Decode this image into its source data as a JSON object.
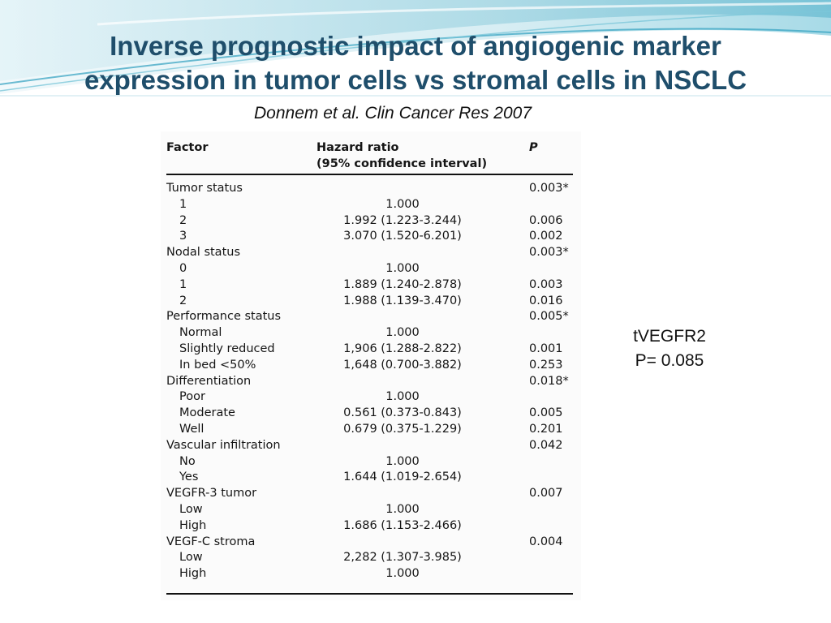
{
  "slide": {
    "title_line1": "Inverse prognostic impact of angiogenic marker",
    "title_line2": "expression in tumor cells vs stromal cells in NSCLC",
    "citation": "Donnem et al. Clin Cancer Res 2007",
    "accent_color": "#1f4e6b"
  },
  "table": {
    "headers": {
      "factor": "Factor",
      "hr_line1": "Hazard ratio",
      "hr_line2": "(95% confidence interval)",
      "p": "P"
    },
    "rows": [
      {
        "factor": "Tumor status",
        "hr": "",
        "p": "0.003*",
        "indent": false
      },
      {
        "factor": "1",
        "hr": "1.000",
        "p": "",
        "indent": true
      },
      {
        "factor": "2",
        "hr": "1.992 (1.223-3.244)",
        "p": "0.006",
        "indent": true
      },
      {
        "factor": "3",
        "hr": "3.070 (1.520-6.201)",
        "p": "0.002",
        "indent": true
      },
      {
        "factor": "Nodal status",
        "hr": "",
        "p": "0.003*",
        "indent": false
      },
      {
        "factor": "0",
        "hr": "1.000",
        "p": "",
        "indent": true
      },
      {
        "factor": "1",
        "hr": "1.889 (1.240-2.878)",
        "p": "0.003",
        "indent": true
      },
      {
        "factor": "2",
        "hr": "1.988 (1.139-3.470)",
        "p": "0.016",
        "indent": true
      },
      {
        "factor": "Performance status",
        "hr": "",
        "p": "0.005*",
        "indent": false
      },
      {
        "factor": "Normal",
        "hr": "1.000",
        "p": "",
        "indent": true
      },
      {
        "factor": "Slightly reduced",
        "hr": "1,906 (1.288-2.822)",
        "p": "0.001",
        "indent": true
      },
      {
        "factor": "In bed <50%",
        "hr": "1,648 (0.700-3.882)",
        "p": "0.253",
        "indent": true
      },
      {
        "factor": "Differentiation",
        "hr": "",
        "p": "0.018*",
        "indent": false
      },
      {
        "factor": "Poor",
        "hr": "1.000",
        "p": "",
        "indent": true
      },
      {
        "factor": "Moderate",
        "hr": "0.561 (0.373-0.843)",
        "p": "0.005",
        "indent": true
      },
      {
        "factor": "Well",
        "hr": "0.679 (0.375-1.229)",
        "p": "0.201",
        "indent": true
      },
      {
        "factor": "Vascular infiltration",
        "hr": "",
        "p": "0.042",
        "indent": false
      },
      {
        "factor": "No",
        "hr": "1.000",
        "p": "",
        "indent": true
      },
      {
        "factor": "Yes",
        "hr": "1.644 (1.019-2.654)",
        "p": "",
        "indent": true
      },
      {
        "factor": "VEGFR-3 tumor",
        "hr": "",
        "p": "0.007",
        "indent": false
      },
      {
        "factor": "Low",
        "hr": "1.000",
        "p": "",
        "indent": true
      },
      {
        "factor": "High",
        "hr": "1.686 (1.153-2.466)",
        "p": "",
        "indent": true
      },
      {
        "factor": "VEGF-C stroma",
        "hr": "",
        "p": "0.004",
        "indent": false
      },
      {
        "factor": "Low",
        "hr": "2,282 (1.307-3.985)",
        "p": "",
        "indent": true
      },
      {
        "factor": "High",
        "hr": "1.000",
        "p": "",
        "indent": true
      }
    ]
  },
  "annotation": {
    "line1": "tVEGFR2",
    "line2": "P= 0.085"
  }
}
